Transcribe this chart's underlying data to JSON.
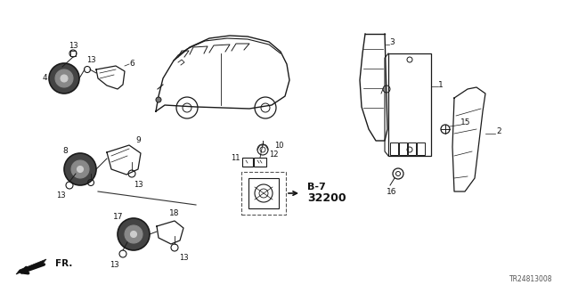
{
  "background_color": "#ffffff",
  "diagram_code": "TR24813008",
  "fig_width": 6.4,
  "fig_height": 3.2
}
